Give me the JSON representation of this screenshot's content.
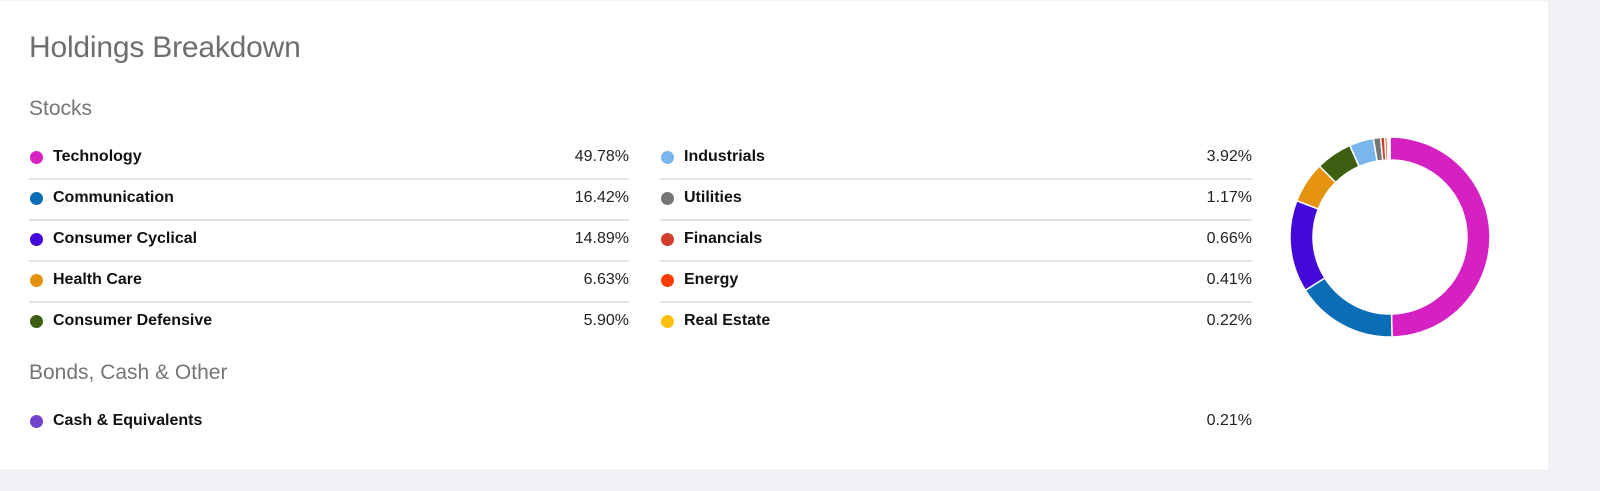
{
  "card": {
    "title": "Holdings Breakdown",
    "sections": {
      "stocks": {
        "title": "Stocks",
        "left_column": [
          {
            "label": "Technology",
            "value": "49.78%",
            "color": "#d621c2"
          },
          {
            "label": "Communication",
            "value": "16.42%",
            "color": "#0b6db5"
          },
          {
            "label": "Consumer Cyclical",
            "value": "14.89%",
            "color": "#4209d8"
          },
          {
            "label": "Health Care",
            "value": "6.63%",
            "color": "#e5930e"
          },
          {
            "label": "Consumer Defensive",
            "value": "5.90%",
            "color": "#3d5f12"
          }
        ],
        "right_column": [
          {
            "label": "Industrials",
            "value": "3.92%",
            "color": "#7ab5ec"
          },
          {
            "label": "Utilities",
            "value": "1.17%",
            "color": "#767676"
          },
          {
            "label": "Financials",
            "value": "0.66%",
            "color": "#d03e2e"
          },
          {
            "label": "Energy",
            "value": "0.41%",
            "color": "#ff3b06"
          },
          {
            "label": "Real Estate",
            "value": "0.22%",
            "color": "#ffc00f"
          }
        ]
      },
      "other": {
        "title": "Bonds, Cash & Other",
        "items": [
          {
            "label": "Cash & Equivalents",
            "value": "0.21%",
            "color": "#7443cc"
          }
        ]
      }
    }
  },
  "chart_data": {
    "type": "pie",
    "subtype": "donut",
    "title": "Holdings Breakdown",
    "categories": [
      "Technology",
      "Communication",
      "Consumer Cyclical",
      "Health Care",
      "Consumer Defensive",
      "Industrials",
      "Utilities",
      "Financials",
      "Energy",
      "Real Estate",
      "Cash & Equivalents"
    ],
    "values": [
      49.78,
      16.42,
      14.89,
      6.63,
      5.9,
      3.92,
      1.17,
      0.66,
      0.41,
      0.22,
      0.21
    ],
    "colors": [
      "#d621c2",
      "#0b6db5",
      "#4209d8",
      "#e5930e",
      "#3d5f12",
      "#7ab5ec",
      "#767676",
      "#d03e2e",
      "#ff3b06",
      "#ffc00f",
      "#7443cc"
    ],
    "unit": "%",
    "legend_position": "left",
    "start_angle": "12 o'clock, clockwise"
  }
}
